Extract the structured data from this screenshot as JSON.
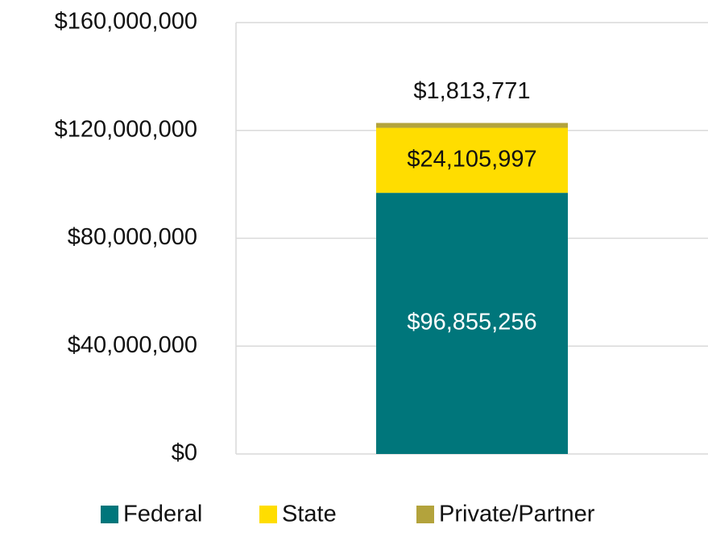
{
  "chart_data": {
    "type": "stacked_bar",
    "categories": [
      null
    ],
    "series": [
      {
        "name": "Federal",
        "color": "#00767b",
        "values": [
          96855256
        ],
        "value_labels": [
          "$96,855,256"
        ]
      },
      {
        "name": "State",
        "color": "#ffdd00",
        "values": [
          24105997
        ],
        "value_labels": [
          "$24,105,997"
        ]
      },
      {
        "name": "Private/Partner",
        "color": "#b3a33c",
        "values": [
          1813771
        ],
        "value_labels": [
          "$1,813,771"
        ]
      }
    ],
    "ylim": [
      0,
      160000000
    ],
    "yticks": [
      {
        "value": 0,
        "label": "$0"
      },
      {
        "value": 40000000,
        "label": "$40,000,000"
      },
      {
        "value": 80000000,
        "label": "$80,000,000"
      },
      {
        "value": 120000000,
        "label": "$120,000,000"
      },
      {
        "value": 160000000,
        "label": "$160,000,000"
      }
    ],
    "grid": true,
    "legend": "bottom"
  }
}
